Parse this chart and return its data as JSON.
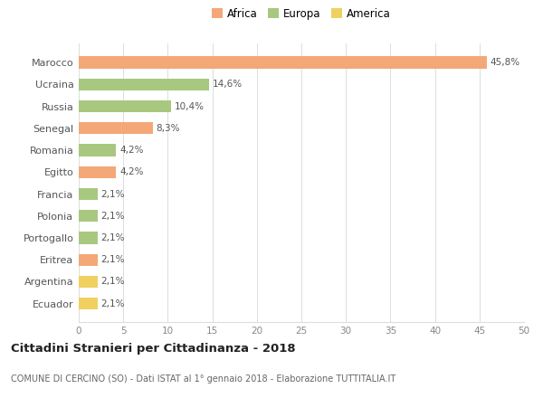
{
  "categories": [
    "Ecuador",
    "Argentina",
    "Eritrea",
    "Portogallo",
    "Polonia",
    "Francia",
    "Egitto",
    "Romania",
    "Senegal",
    "Russia",
    "Ucraina",
    "Marocco"
  ],
  "values": [
    2.1,
    2.1,
    2.1,
    2.1,
    2.1,
    2.1,
    4.2,
    4.2,
    8.3,
    10.4,
    14.6,
    45.8
  ],
  "labels": [
    "2,1%",
    "2,1%",
    "2,1%",
    "2,1%",
    "2,1%",
    "2,1%",
    "4,2%",
    "4,2%",
    "8,3%",
    "10,4%",
    "14,6%",
    "45,8%"
  ],
  "colors": [
    "#f0d060",
    "#f0d060",
    "#f4a878",
    "#a8c880",
    "#a8c880",
    "#a8c880",
    "#f4a878",
    "#a8c880",
    "#f4a878",
    "#a8c880",
    "#a8c880",
    "#f4a878"
  ],
  "legend_labels": [
    "Africa",
    "Europa",
    "America"
  ],
  "legend_colors": [
    "#f4a878",
    "#a8c880",
    "#f0d060"
  ],
  "title": "Cittadini Stranieri per Cittadinanza - 2018",
  "subtitle": "COMUNE DI CERCINO (SO) - Dati ISTAT al 1° gennaio 2018 - Elaborazione TUTTITALIA.IT",
  "xlim": [
    0,
    50
  ],
  "xticks": [
    0,
    5,
    10,
    15,
    20,
    25,
    30,
    35,
    40,
    45,
    50
  ],
  "background_color": "#ffffff",
  "grid_color": "#dddddd"
}
